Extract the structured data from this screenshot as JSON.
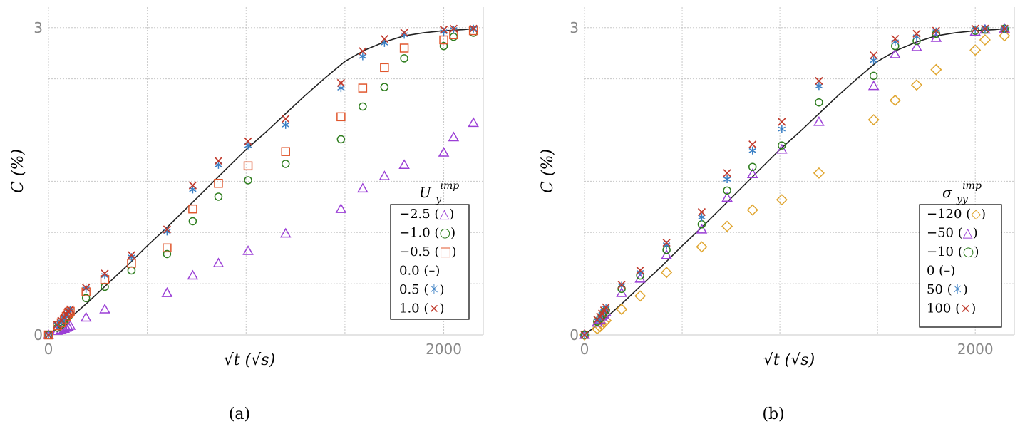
{
  "chart_data": [
    {
      "type": "scatter",
      "caption": "(a)",
      "xlabel": "√t (√s)",
      "ylabel": "C (%)",
      "xlim": [
        0,
        2200
      ],
      "ylim": [
        0,
        3.2
      ],
      "xticks": [
        {
          "value": 0,
          "label": "0"
        },
        {
          "value": 2000,
          "label": "2000"
        }
      ],
      "yticks": [
        {
          "value": 0,
          "label": "0"
        },
        {
          "value": 3,
          "label": "3"
        }
      ],
      "grid": true,
      "legend": {
        "title": "U_y^imp",
        "title_main": "U",
        "title_sub": "y",
        "title_sup": "imp",
        "placement": "right"
      },
      "series": [
        {
          "name": "−2.5",
          "glyph": "△",
          "marker": "triangle",
          "color": "#9b3fd6",
          "x": [
            0,
            45,
            65,
            80,
            90,
            100,
            110,
            190,
            285,
            600,
            600,
            730,
            860,
            1010,
            1200,
            1480,
            1590,
            1700,
            1800,
            2000,
            2050,
            2150
          ],
          "y": [
            0,
            0.04,
            0.05,
            0.06,
            0.07,
            0.08,
            0.09,
            0.17,
            0.25,
            0.41,
            0.41,
            0.58,
            0.7,
            0.82,
            0.99,
            1.23,
            1.43,
            1.55,
            1.66,
            1.78,
            1.93,
            2.07
          ]
        },
        {
          "name": "−1.0",
          "glyph": "○",
          "marker": "circle",
          "color": "#2e7d1e",
          "x": [
            0,
            45,
            65,
            80,
            90,
            100,
            110,
            190,
            285,
            420,
            600,
            730,
            860,
            1010,
            1200,
            1480,
            1590,
            1700,
            1800,
            2000,
            2050,
            2150
          ],
          "y": [
            0,
            0.07,
            0.1,
            0.13,
            0.16,
            0.18,
            0.2,
            0.36,
            0.47,
            0.63,
            0.79,
            1.11,
            1.35,
            1.51,
            1.67,
            1.91,
            2.23,
            2.42,
            2.7,
            2.82,
            2.91,
            2.95
          ]
        },
        {
          "name": "−0.5",
          "glyph": "□",
          "marker": "square",
          "color": "#e0572e",
          "x": [
            0,
            45,
            65,
            80,
            90,
            100,
            110,
            190,
            285,
            420,
            600,
            730,
            860,
            1010,
            1200,
            1480,
            1590,
            1700,
            1800,
            2000,
            2050,
            2150
          ],
          "y": [
            0,
            0.09,
            0.12,
            0.15,
            0.18,
            0.21,
            0.23,
            0.42,
            0.54,
            0.7,
            0.85,
            1.23,
            1.48,
            1.65,
            1.79,
            2.13,
            2.41,
            2.61,
            2.8,
            2.88,
            2.93,
            2.97
          ]
        },
        {
          "name": "0.0",
          "glyph": "–",
          "marker": "line",
          "color": "#222222",
          "x": [
            0,
            100,
            200,
            300,
            400,
            500,
            600,
            700,
            800,
            900,
            1000,
            1100,
            1200,
            1300,
            1400,
            1500,
            1600,
            1700,
            1800,
            1900,
            2000,
            2100,
            2150
          ],
          "y": [
            0,
            0.15,
            0.32,
            0.5,
            0.68,
            0.87,
            1.05,
            1.24,
            1.43,
            1.62,
            1.81,
            1.98,
            2.16,
            2.34,
            2.51,
            2.67,
            2.78,
            2.86,
            2.92,
            2.95,
            2.97,
            2.98,
            2.99
          ]
        },
        {
          "name": "0.5",
          "glyph": "✳",
          "marker": "asterisk",
          "color": "#3a7fc4",
          "x": [
            0,
            45,
            65,
            80,
            90,
            100,
            110,
            190,
            285,
            420,
            600,
            730,
            860,
            1010,
            1200,
            1480,
            1590,
            1700,
            1800,
            2000,
            2050,
            2150
          ],
          "y": [
            0,
            0.1,
            0.13,
            0.16,
            0.19,
            0.22,
            0.24,
            0.45,
            0.58,
            0.76,
            1.01,
            1.42,
            1.66,
            1.85,
            2.05,
            2.41,
            2.72,
            2.85,
            2.93,
            2.96,
            2.98,
            2.99
          ]
        },
        {
          "name": "1.0",
          "glyph": "×",
          "marker": "x",
          "color": "#c0392b",
          "x": [
            0,
            45,
            65,
            80,
            90,
            100,
            110,
            190,
            285,
            420,
            600,
            730,
            860,
            1010,
            1200,
            1480,
            1590,
            1700,
            1800,
            2000,
            2050,
            2150
          ],
          "y": [
            0,
            0.1,
            0.14,
            0.17,
            0.2,
            0.23,
            0.25,
            0.46,
            0.6,
            0.78,
            1.03,
            1.46,
            1.7,
            1.89,
            2.11,
            2.46,
            2.77,
            2.89,
            2.95,
            2.98,
            2.99,
            2.99
          ]
        }
      ]
    },
    {
      "type": "scatter",
      "caption": "(b)",
      "xlabel": "√t (√s)",
      "ylabel": "C (%)",
      "xlim": [
        0,
        2200
      ],
      "ylim": [
        0,
        3.2
      ],
      "xticks": [
        {
          "value": 0,
          "label": "0"
        },
        {
          "value": 2000,
          "label": "2000"
        }
      ],
      "yticks": [
        {
          "value": 0,
          "label": "0"
        },
        {
          "value": 3,
          "label": "3"
        }
      ],
      "grid": true,
      "legend": {
        "title": "σ_yy^imp",
        "title_main": "σ",
        "title_sub": "yy",
        "title_sup": "imp",
        "placement": "right"
      },
      "series": [
        {
          "name": "−120",
          "glyph": "◇",
          "marker": "diamond",
          "color": "#e0a52e",
          "x": [
            0,
            65,
            80,
            90,
            100,
            110,
            190,
            285,
            420,
            600,
            730,
            860,
            1010,
            1200,
            1480,
            1590,
            1700,
            1800,
            2000,
            2050,
            2150
          ],
          "y": [
            0,
            0.06,
            0.08,
            0.1,
            0.12,
            0.14,
            0.25,
            0.38,
            0.61,
            0.86,
            1.06,
            1.22,
            1.32,
            1.58,
            2.1,
            2.29,
            2.44,
            2.59,
            2.78,
            2.88,
            2.92
          ]
        },
        {
          "name": "−50",
          "glyph": "△",
          "marker": "triangle",
          "color": "#9b3fd6",
          "x": [
            0,
            65,
            80,
            90,
            100,
            110,
            190,
            285,
            420,
            600,
            730,
            860,
            1010,
            1200,
            1480,
            1590,
            1700,
            1800,
            2000,
            2050,
            2150
          ],
          "y": [
            0,
            0.12,
            0.15,
            0.18,
            0.2,
            0.22,
            0.41,
            0.55,
            0.78,
            1.03,
            1.34,
            1.57,
            1.81,
            2.08,
            2.43,
            2.74,
            2.81,
            2.9,
            2.96,
            2.98,
            2.99
          ]
        },
        {
          "name": "−10",
          "glyph": "○",
          "marker": "circle",
          "color": "#2e7d1e",
          "x": [
            0,
            65,
            80,
            90,
            100,
            110,
            190,
            285,
            420,
            600,
            730,
            860,
            1010,
            1200,
            1480,
            1590,
            1700,
            1800,
            2000,
            2050,
            2150
          ],
          "y": [
            0,
            0.13,
            0.16,
            0.19,
            0.22,
            0.24,
            0.45,
            0.58,
            0.83,
            1.08,
            1.41,
            1.64,
            1.85,
            2.27,
            2.53,
            2.82,
            2.87,
            2.94,
            2.97,
            2.98,
            2.99
          ]
        },
        {
          "name": "0",
          "glyph": "–",
          "marker": "line",
          "color": "#222222",
          "x": [
            0,
            100,
            200,
            300,
            400,
            500,
            600,
            700,
            800,
            900,
            1000,
            1100,
            1200,
            1300,
            1400,
            1500,
            1600,
            1700,
            1800,
            1900,
            2000,
            2100,
            2150
          ],
          "y": [
            0,
            0.15,
            0.32,
            0.5,
            0.68,
            0.87,
            1.05,
            1.24,
            1.43,
            1.62,
            1.81,
            1.98,
            2.16,
            2.34,
            2.51,
            2.67,
            2.78,
            2.86,
            2.92,
            2.95,
            2.97,
            2.98,
            2.99
          ]
        },
        {
          "name": "50",
          "glyph": "✳",
          "marker": "asterisk",
          "color": "#3a7fc4",
          "x": [
            0,
            65,
            80,
            90,
            100,
            110,
            190,
            285,
            420,
            600,
            730,
            860,
            1010,
            1200,
            1480,
            1590,
            1700,
            1800,
            2000,
            2050,
            2150
          ],
          "y": [
            0,
            0.14,
            0.17,
            0.2,
            0.23,
            0.26,
            0.48,
            0.61,
            0.88,
            1.15,
            1.52,
            1.8,
            2.01,
            2.43,
            2.68,
            2.86,
            2.91,
            2.96,
            2.98,
            2.99,
            2.99
          ]
        },
        {
          "name": "100",
          "glyph": "×",
          "marker": "x",
          "color": "#c0392b",
          "x": [
            0,
            65,
            80,
            90,
            100,
            110,
            190,
            285,
            420,
            600,
            730,
            860,
            1010,
            1200,
            1480,
            1590,
            1700,
            1800,
            2000,
            2050,
            2150
          ],
          "y": [
            0,
            0.15,
            0.18,
            0.21,
            0.24,
            0.27,
            0.49,
            0.63,
            0.9,
            1.2,
            1.58,
            1.86,
            2.08,
            2.48,
            2.73,
            2.89,
            2.94,
            2.97,
            2.99,
            2.99,
            2.99
          ]
        }
      ]
    }
  ]
}
